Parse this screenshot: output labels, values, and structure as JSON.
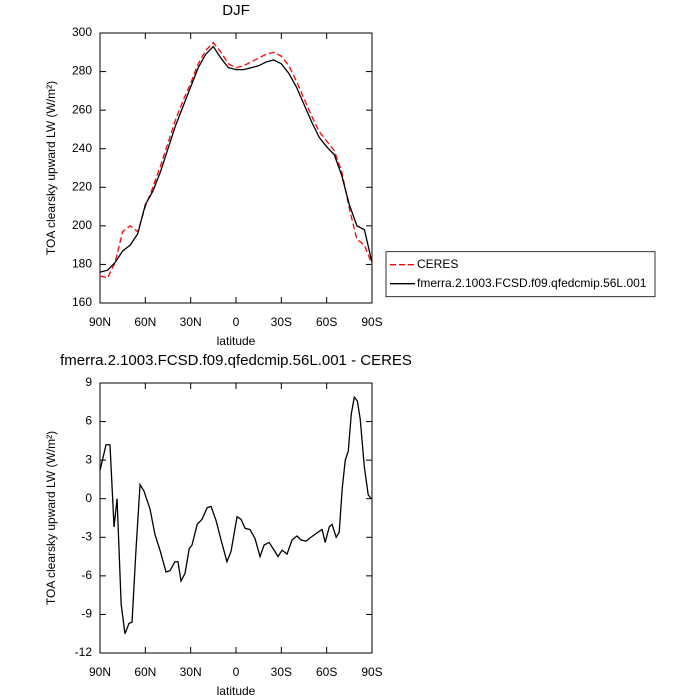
{
  "chart_data": [
    {
      "type": "line",
      "title": "DJF",
      "x_label": "latitude",
      "y_label": "TOA clearsky upward LW (W/m²)",
      "x": [
        90,
        85,
        80,
        75,
        70,
        65,
        60,
        55,
        50,
        45,
        40,
        35,
        30,
        25,
        20,
        15,
        10,
        5,
        0,
        -5,
        -10,
        -15,
        -20,
        -25,
        -30,
        -35,
        -40,
        -45,
        -50,
        -55,
        -60,
        -65,
        -70,
        -75,
        -80,
        -85,
        -90
      ],
      "series": [
        {
          "name": "CERES",
          "color": "#ff0000",
          "dashed": true,
          "values": [
            174,
            173,
            181,
            197,
            200,
            197,
            210,
            220,
            231,
            243,
            255,
            265,
            274,
            284,
            291,
            295,
            290,
            284,
            282,
            283,
            285,
            287,
            289,
            290,
            288,
            283,
            275,
            266,
            257,
            249,
            244,
            239,
            228,
            209,
            193,
            190,
            180
          ]
        },
        {
          "name": "fmerra.2.1003.FCSD.f09.qfedcmip.56L.001",
          "color": "#000000",
          "dashed": false,
          "values": [
            176,
            177,
            181,
            187,
            190,
            196,
            211,
            218,
            228,
            240,
            252,
            262,
            272,
            282,
            289,
            293,
            287,
            282,
            281,
            281,
            282,
            283,
            285,
            286,
            284,
            279,
            272,
            263,
            254,
            246,
            241,
            237,
            226,
            211,
            200,
            198,
            181
          ]
        }
      ],
      "xlim": [
        90,
        -90
      ],
      "xticks": [
        {
          "value": 90,
          "label": "90N"
        },
        {
          "value": 60,
          "label": "60N"
        },
        {
          "value": 30,
          "label": "30N"
        },
        0,
        {
          "value": -30,
          "label": "30S"
        },
        {
          "value": -60,
          "label": "60S"
        },
        {
          "value": -90,
          "label": "90S"
        }
      ],
      "ylim": [
        160,
        300
      ],
      "yticks": [
        160,
        180,
        200,
        220,
        240,
        260,
        280,
        300
      ],
      "legend": "right"
    },
    {
      "type": "line",
      "title": "fmerra.2.1003.FCSD.f09.qfedcmip.56L.001 - CERES",
      "x_label": "latitude",
      "y_label": "TOA clearsky upward LW (W/m²)",
      "x": [
        90,
        86,
        83.4,
        80.7,
        78.7,
        76,
        73.5,
        70.8,
        68.8,
        66.2,
        63.5,
        60.9,
        56.9,
        53.6,
        50.3,
        46.3,
        43.7,
        40.4,
        38.4,
        36.4,
        33.7,
        31,
        29.1,
        25.7,
        22.5,
        19.1,
        16.5,
        13.2,
        9.9,
        6,
        3.3,
        -0.7,
        -3.3,
        -6,
        -9.3,
        -12.6,
        -15.9,
        -18.6,
        -21.9,
        -25.2,
        -27.8,
        -30.5,
        -33.8,
        -37.1,
        -40.4,
        -43,
        -46.3,
        -49.6,
        -54.3,
        -57,
        -59,
        -61.7,
        -63.6,
        -66.3,
        -68.3,
        -70.3,
        -72.3,
        -74.3,
        -76.3,
        -78.3,
        -80.3,
        -82.2,
        -84.9,
        -87.5,
        -89.5
      ],
      "values": [
        2.2,
        4.2,
        4.2,
        -2.2,
        0,
        -8.2,
        -10.5,
        -9.7,
        -9.6,
        -4,
        1.1,
        0.6,
        -0.8,
        -2.8,
        -4,
        -5.7,
        -5.6,
        -4.9,
        -4.9,
        -6.4,
        -5.8,
        -3.9,
        -3.6,
        -2,
        -1.6,
        -0.7,
        -0.6,
        -1.7,
        -3.2,
        -4.9,
        -4.1,
        -1.4,
        -1.6,
        -2.3,
        -2.4,
        -3.1,
        -4.5,
        -3.6,
        -3.4,
        -4,
        -4.5,
        -4,
        -4.3,
        -3.2,
        -2.9,
        -3.2,
        -3.3,
        -3,
        -2.6,
        -2.4,
        -3.4,
        -2.2,
        -2,
        -3,
        -2.6,
        0.8,
        3,
        3.7,
        6.6,
        7.9,
        7.6,
        6.2,
        2.5,
        0.3,
        0
      ],
      "color": "#000000",
      "xlim": [
        90,
        -90
      ],
      "xticks": [
        {
          "value": 90,
          "label": "90N"
        },
        {
          "value": 60,
          "label": "60N"
        },
        {
          "value": 30,
          "label": "30N"
        },
        0,
        {
          "value": -30,
          "label": "30S"
        },
        {
          "value": -60,
          "label": "60S"
        },
        {
          "value": -90,
          "label": "90S"
        }
      ],
      "ylim": [
        -12,
        9
      ],
      "yticks": [
        -12,
        -9,
        -6,
        -3,
        0,
        3,
        6,
        9
      ]
    }
  ]
}
